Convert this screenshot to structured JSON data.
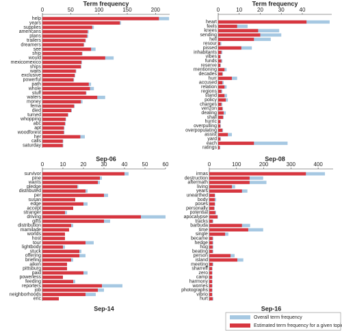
{
  "legend": [
    {
      "name": "Overall term frequency",
      "color": "#a6c8e2"
    },
    {
      "name": "Estimated term frequency for a given topic",
      "color": "#d7363f"
    }
  ],
  "chart_data": [
    {
      "type": "bar",
      "orientation": "horizontal",
      "x_label": "Term frequency",
      "title": "Sep-06",
      "categories": [
        "help",
        "years",
        "supplies",
        "americans",
        "plans",
        "trailers",
        "dreamers",
        "see",
        "ship",
        "would",
        "mexicomexico",
        "ships",
        "waits",
        "exclusive",
        "powerful",
        "path",
        "whole",
        "stuff",
        "waters",
        "money",
        "fema",
        "died",
        "turned",
        "whopping",
        "abc",
        "apt",
        "woodforest",
        "her",
        "calls",
        "saturday"
      ],
      "series": [
        {
          "values": [
            224,
            139,
            91,
            82,
            81,
            77,
            74,
            94,
            71,
            126,
            70,
            69,
            60,
            58,
            56,
            86,
            91,
            78,
            111,
            71,
            57,
            52,
            46,
            42,
            41,
            39,
            39,
            75,
            37,
            37
          ]
        },
        {
          "values": [
            206,
            137,
            88,
            80,
            79,
            76,
            73,
            86,
            70,
            111,
            69,
            68,
            59,
            57,
            55,
            82,
            84,
            77,
            97,
            68,
            56,
            51,
            45,
            41,
            40,
            38,
            38,
            67,
            36,
            36
          ]
        }
      ],
      "xlim": [
        0,
        225
      ],
      "xticks": [
        0,
        50,
        100,
        150,
        200
      ]
    },
    {
      "type": "bar",
      "orientation": "horizontal",
      "x_label": "Term frequency",
      "title": "Sep-08",
      "categories": [
        "heart",
        "feels",
        "knees",
        "sending",
        "hell",
        "resour",
        "pissed",
        "inhabitants",
        "vibes",
        "funds",
        "reserve",
        "mentioning",
        "decades",
        "hurr",
        "accused",
        "relation",
        "regions",
        "stand",
        "policy",
        "charges",
        "verizon",
        "dealing",
        "shall",
        "hurric",
        "overpulling",
        "overpopulating",
        "assist",
        "yard",
        "each",
        "ratings"
      ],
      "series": [
        {
          "values": [
            53,
            14,
            29,
            30,
            25,
            1.5,
            16,
            2,
            1.3,
            2,
            1.3,
            4,
            2.3,
            9,
            2.6,
            4,
            2,
            4.2,
            4.6,
            2,
            2.3,
            3.6,
            2.6,
            1.3,
            1.3,
            2.3,
            6.5,
            1.3,
            33,
            1
          ]
        },
        {
          "values": [
            42,
            9,
            19,
            20,
            17,
            1,
            11,
            1.5,
            1,
            1.5,
            1,
            3,
            2,
            6.5,
            2,
            3,
            1.5,
            3,
            3.6,
            1.5,
            2,
            2.6,
            2.3,
            1,
            1,
            2,
            4.6,
            1,
            17,
            0.7
          ]
        }
      ],
      "xlim": [
        0,
        54
      ],
      "xticks": [
        0,
        10,
        20,
        30,
        40
      ]
    },
    {
      "type": "bar",
      "orientation": "horizontal",
      "title": "Sep-14",
      "categories": [
        "survivor",
        "pine",
        "wants",
        "pledge",
        "distributed",
        "per",
        "susan",
        "edge",
        "accept",
        "stranger",
        "driving",
        "gifts",
        "distribution",
        "mamilade",
        "worlds",
        "host",
        "tour",
        "lightbody",
        "stuck",
        "offering",
        "briefing",
        "aiken",
        "pittsburg",
        "paid",
        "powerless",
        "feeding",
        "reporters",
        "job",
        "neighborhoods",
        "eric"
      ],
      "series": [
        {
          "values": [
            42,
            29,
            28,
            17.5,
            22,
            32,
            16,
            22,
            15,
            12,
            60,
            33,
            15,
            13,
            11,
            11,
            25,
            11,
            19,
            21,
            15,
            12,
            12,
            22,
            10,
            16,
            39,
            30,
            26,
            8
          ]
        },
        {
          "values": [
            40,
            28,
            27,
            17,
            21,
            30,
            16,
            20,
            15,
            11,
            48,
            30,
            14,
            13,
            11,
            11,
            21,
            10,
            18,
            18,
            14,
            12,
            12,
            20,
            10,
            15,
            29,
            27,
            21,
            8
          ]
        }
      ],
      "xlim": [
        0,
        60
      ],
      "xticks": [
        0,
        10,
        20,
        30,
        40,
        50,
        60
      ]
    },
    {
      "type": "bar",
      "orientation": "horizontal",
      "title": "Sep-16",
      "categories": [
        "irmas",
        "destruction",
        "aftermath",
        "living",
        "years",
        "unearthed",
        "body",
        "poses",
        "personally",
        "potential",
        "apocalypse",
        "tracks",
        "barbuda",
        "time",
        "single",
        "became",
        "hedge",
        "hug",
        "beating",
        "person",
        "island",
        "meeting",
        "sharreff",
        "zero",
        "camp",
        "harmony",
        "worries",
        "photographs",
        "vibrio",
        "hurt"
      ],
      "series": [
        {
          "values": [
            425,
            198,
            210,
            95,
            140,
            22,
            25,
            22,
            20,
            25,
            32,
            15,
            150,
            198,
            70,
            15,
            15,
            15,
            15,
            93,
            125,
            15,
            12,
            12,
            12,
            12,
            12,
            12,
            12,
            15
          ]
        },
        {
          "values": [
            355,
            148,
            148,
            83,
            120,
            20,
            20,
            20,
            18,
            22,
            30,
            12,
            120,
            143,
            58,
            12,
            12,
            12,
            12,
            78,
            103,
            12,
            10,
            10,
            10,
            10,
            10,
            10,
            10,
            12
          ]
        }
      ],
      "xlim": [
        0,
        455
      ],
      "xticks": [
        0,
        100,
        200,
        300,
        400
      ]
    }
  ]
}
